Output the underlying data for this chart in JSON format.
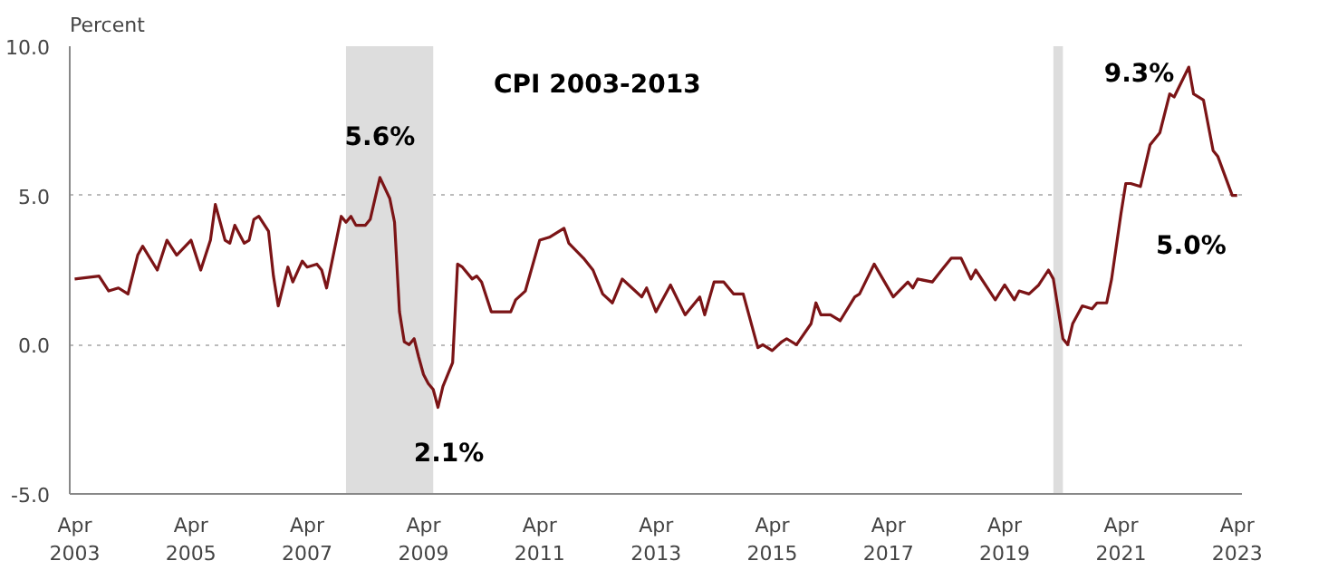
{
  "chart_data": {
    "type": "line",
    "ylabel": "Percent",
    "x": [
      "2003-04",
      "2003-09",
      "2003-11",
      "2004-01",
      "2004-03",
      "2004-05",
      "2004-06",
      "2004-09",
      "2004-11",
      "2005-01",
      "2005-04",
      "2005-06",
      "2005-08",
      "2005-09",
      "2005-11",
      "2005-12",
      "2006-01",
      "2006-03",
      "2006-04",
      "2006-05",
      "2006-06",
      "2006-08",
      "2006-09",
      "2006-10",
      "2006-12",
      "2007-01",
      "2007-03",
      "2007-04",
      "2007-06",
      "2007-07",
      "2007-08",
      "2007-11",
      "2007-12",
      "2008-01",
      "2008-02",
      "2008-04",
      "2008-05",
      "2008-07",
      "2008-09",
      "2008-10",
      "2008-11",
      "2008-12",
      "2009-01",
      "2009-02",
      "2009-03",
      "2009-04",
      "2009-05",
      "2009-06",
      "2009-07",
      "2009-08",
      "2009-10",
      "2009-11",
      "2009-12",
      "2010-02",
      "2010-03",
      "2010-04",
      "2010-06",
      "2010-08",
      "2010-10",
      "2010-11",
      "2011-01",
      "2011-04",
      "2011-06",
      "2011-09",
      "2011-10",
      "2012-01",
      "2012-03",
      "2012-05",
      "2012-07",
      "2012-09",
      "2012-11",
      "2013-01",
      "2013-02",
      "2013-04",
      "2013-07",
      "2013-10",
      "2014-01",
      "2014-02",
      "2014-04",
      "2014-06",
      "2014-08",
      "2014-10",
      "2015-01",
      "2015-02",
      "2015-04",
      "2015-06",
      "2015-07",
      "2015-09",
      "2015-12",
      "2016-01",
      "2016-02",
      "2016-04",
      "2016-06",
      "2016-09",
      "2016-10",
      "2017-01",
      "2017-05",
      "2017-08",
      "2017-09",
      "2017-10",
      "2018-01",
      "2018-03",
      "2018-05",
      "2018-07",
      "2018-09",
      "2018-10",
      "2019-02",
      "2019-04",
      "2019-06",
      "2019-07",
      "2019-09",
      "2019-11",
      "2020-01",
      "2020-02",
      "2020-04",
      "2020-05",
      "2020-06",
      "2020-08",
      "2020-10",
      "2020-11",
      "2021-01",
      "2021-02",
      "2021-04",
      "2021-05",
      "2021-06",
      "2021-08",
      "2021-10",
      "2021-12",
      "2022-02",
      "2022-03",
      "2022-06",
      "2022-07",
      "2022-09",
      "2022-11",
      "2022-12",
      "2023-03",
      "2023-04"
    ],
    "series": [
      {
        "color": "#7b1416",
        "values": [
          2.2,
          2.3,
          1.8,
          1.9,
          1.7,
          3.0,
          3.3,
          2.5,
          3.5,
          3.0,
          3.5,
          2.5,
          3.5,
          4.7,
          3.5,
          3.4,
          4.0,
          3.4,
          3.5,
          4.2,
          4.3,
          3.8,
          2.3,
          1.3,
          2.6,
          2.1,
          2.8,
          2.6,
          2.7,
          2.5,
          1.9,
          4.3,
          4.1,
          4.3,
          4.0,
          4.0,
          4.2,
          5.6,
          4.9,
          4.1,
          1.1,
          0.1,
          0.0,
          0.2,
          -0.4,
          -1.0,
          -1.3,
          -1.5,
          -2.1,
          -1.4,
          -0.6,
          2.7,
          2.6,
          2.2,
          2.3,
          2.1,
          1.1,
          1.1,
          1.1,
          1.5,
          1.8,
          3.5,
          3.6,
          3.9,
          3.4,
          2.9,
          2.5,
          1.7,
          1.4,
          2.2,
          1.9,
          1.6,
          1.9,
          1.1,
          2.0,
          1.0,
          1.6,
          1.0,
          2.1,
          2.1,
          1.7,
          1.7,
          -0.1,
          0.0,
          -0.2,
          0.1,
          0.2,
          0.0,
          0.7,
          1.4,
          1.0,
          1.0,
          0.8,
          1.6,
          1.7,
          2.7,
          1.6,
          2.1,
          1.9,
          2.2,
          2.1,
          2.5,
          2.9,
          2.9,
          2.2,
          2.5,
          1.5,
          2.0,
          1.5,
          1.8,
          1.7,
          2.0,
          2.5,
          2.2,
          0.2,
          0.0,
          0.7,
          1.3,
          1.2,
          1.4,
          1.4,
          2.2,
          4.4,
          5.4,
          5.4,
          5.3,
          6.7,
          7.1,
          8.4,
          8.3,
          9.3,
          8.4,
          8.2,
          6.5,
          6.3,
          5.0,
          5.0
        ]
      }
    ],
    "xlim": [
      "2003-03",
      "2023-05"
    ],
    "xticks": [
      {
        "value": "2003-04",
        "label": "Apr\n2003"
      },
      {
        "value": "2005-04",
        "label": "Apr\n2005"
      },
      {
        "value": "2007-04",
        "label": "Apr\n2007"
      },
      {
        "value": "2009-04",
        "label": "Apr\n2009"
      },
      {
        "value": "2011-04",
        "label": "Apr\n2011"
      },
      {
        "value": "2013-04",
        "label": "Apr\n2013"
      },
      {
        "value": "2015-04",
        "label": "Apr\n2015"
      },
      {
        "value": "2017-04",
        "label": "Apr\n2017"
      },
      {
        "value": "2019-04",
        "label": "Apr\n2019"
      },
      {
        "value": "2021-04",
        "label": "Apr\n2021"
      },
      {
        "value": "2023-04",
        "label": "Apr\n2023"
      }
    ],
    "ylim": [
      -5,
      10
    ],
    "yticks": [
      {
        "value": -5,
        "label": "-5.0"
      },
      {
        "value": 0,
        "label": "0.0"
      },
      {
        "value": 5,
        "label": "5.0"
      },
      {
        "value": 10,
        "label": "10.0"
      }
    ],
    "grid": "y",
    "bands": [
      {
        "axis": "x",
        "from": "2007-12",
        "to": "2009-06",
        "color": "#dddddd"
      },
      {
        "axis": "x",
        "from": "2020-02",
        "to": "2020-04",
        "color": "#dddddd"
      }
    ],
    "annotations": [
      "CPI 2003-2013",
      {
        "text": "5.6%",
        "x": "2008-07",
        "y": 5.6
      },
      {
        "text": "2.1%",
        "x": "2009-07",
        "y": -2.1
      },
      {
        "text": "9.3%",
        "x": "2022-06",
        "y": 9.3
      },
      {
        "text": "5.0%",
        "x": "2023-04",
        "y": 5.0
      }
    ]
  }
}
